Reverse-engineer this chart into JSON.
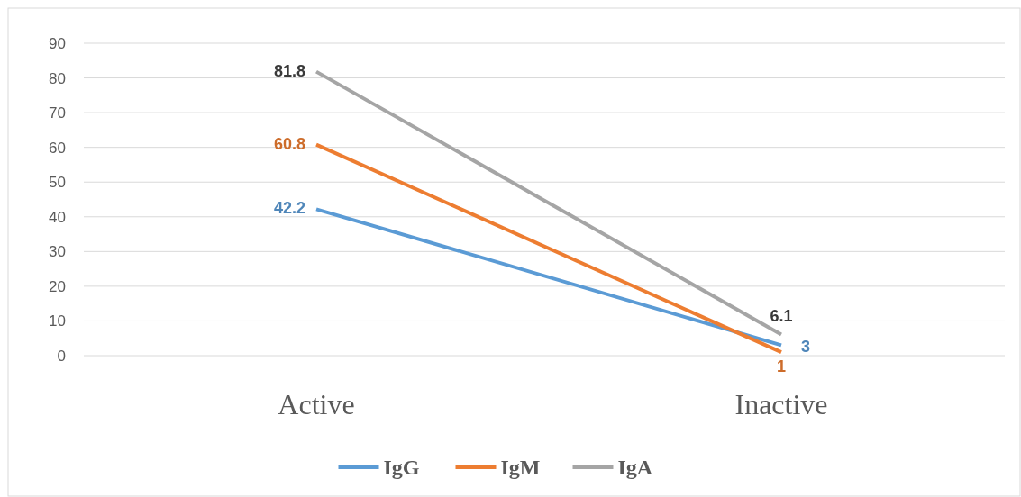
{
  "chart_data": {
    "type": "line",
    "categories": [
      "Active",
      "Inactive"
    ],
    "series": [
      {
        "name": "IgG",
        "color": "#5b9bd5",
        "values": [
          42.2,
          3
        ]
      },
      {
        "name": "IgM",
        "color": "#ed7d31",
        "values": [
          60.8,
          1
        ]
      },
      {
        "name": "IgA",
        "color": "#a5a5a5",
        "values": [
          81.8,
          6.1
        ]
      }
    ],
    "ylim": [
      0,
      90
    ],
    "yticks": [
      0,
      10,
      20,
      30,
      40,
      50,
      60,
      70,
      80,
      90
    ],
    "grid": "y",
    "legend": "bottom",
    "data_labels": true,
    "marker": "none",
    "line_style": "solid"
  }
}
